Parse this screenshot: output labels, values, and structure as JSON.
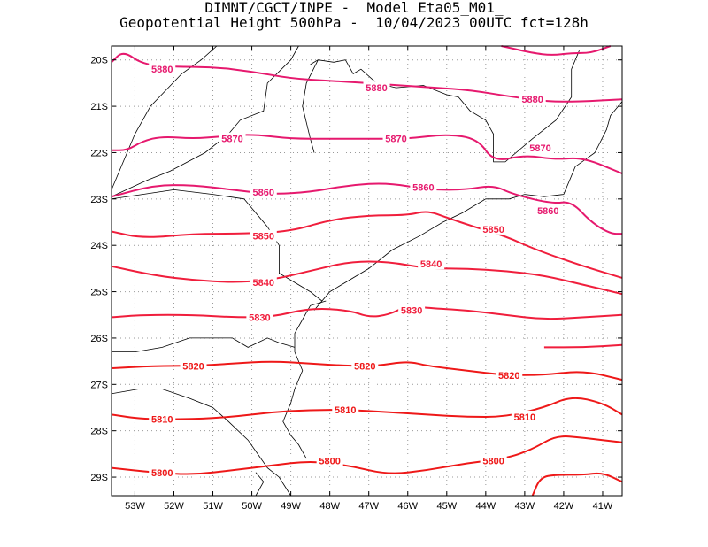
{
  "title": {
    "line1": "DIMNT/CGCT/INPE -  Model Eta05_M01_",
    "line2": "Geopotential Height 500hPa -  10/04/2023 00UTC fct=128h"
  },
  "axes": {
    "x_ticks": [
      "53W",
      "52W",
      "51W",
      "50W",
      "49W",
      "48W",
      "47W",
      "46W",
      "45W",
      "44W",
      "43W",
      "42W",
      "41W"
    ],
    "x_values": [
      -53,
      -52,
      -51,
      -50,
      -49,
      -48,
      -47,
      -46,
      -45,
      -44,
      -43,
      -42,
      -41
    ],
    "y_ticks": [
      "20S",
      "21S",
      "22S",
      "23S",
      "24S",
      "25S",
      "26S",
      "27S",
      "28S",
      "29S"
    ],
    "y_values": [
      -20,
      -21,
      -22,
      -23,
      -24,
      -25,
      -26,
      -27,
      -28,
      -29
    ],
    "lon_range": [
      -53.6,
      -40.5
    ],
    "lat_range": [
      -29.4,
      -19.7
    ],
    "grid": "dotted"
  },
  "colors": {
    "contour_high": "#e6196e",
    "contour_mid": "#f01e3c",
    "contour_low": "#ee1818",
    "coastline": "#000000",
    "grid": "#999999"
  },
  "contours": [
    {
      "level": 5880,
      "color": "#e6196e",
      "labels": [
        "5880",
        "5880",
        "5880"
      ],
      "points": [
        [
          -53.6,
          -20.05
        ],
        [
          -53.3,
          -19.8
        ],
        [
          -52.8,
          -20.1
        ],
        [
          -52.0,
          -20.15
        ],
        [
          -51.0,
          -20.15
        ],
        [
          -50.0,
          -20.25
        ],
        [
          -49.0,
          -20.4
        ],
        [
          -48.0,
          -20.45
        ],
        [
          -47.0,
          -20.5
        ],
        [
          -46.2,
          -20.55
        ],
        [
          -45.3,
          -20.6
        ],
        [
          -44.4,
          -20.65
        ],
        [
          -43.3,
          -20.8
        ],
        [
          -42.4,
          -20.9
        ],
        [
          -41.6,
          -20.9
        ],
        [
          -40.5,
          -20.85
        ]
      ],
      "label_pos": [
        [
          -52.3,
          -20.2
        ],
        [
          -46.8,
          -20.6
        ],
        [
          -42.8,
          -20.85
        ]
      ]
    },
    {
      "level": 5880,
      "color": "#e6196e",
      "labels": [],
      "points": [
        [
          -43.6,
          -19.7
        ],
        [
          -42.8,
          -19.85
        ],
        [
          -42.3,
          -19.9
        ],
        [
          -41.8,
          -19.85
        ],
        [
          -41.3,
          -19.85
        ],
        [
          -40.8,
          -19.7
        ]
      ],
      "label_pos": []
    },
    {
      "level": 5870,
      "color": "#e6196e",
      "labels": [
        "5870",
        "5870",
        "5870"
      ],
      "points": [
        [
          -53.6,
          -21.95
        ],
        [
          -53.2,
          -21.95
        ],
        [
          -52.8,
          -21.75
        ],
        [
          -52.3,
          -21.65
        ],
        [
          -51.5,
          -21.7
        ],
        [
          -50.8,
          -21.65
        ],
        [
          -50.0,
          -21.6
        ],
        [
          -49.0,
          -21.7
        ],
        [
          -48.0,
          -21.7
        ],
        [
          -47.0,
          -21.7
        ],
        [
          -46.0,
          -21.7
        ],
        [
          -45.0,
          -21.6
        ],
        [
          -44.2,
          -21.7
        ],
        [
          -43.8,
          -22.2
        ],
        [
          -43.0,
          -22.05
        ],
        [
          -42.2,
          -22.15
        ],
        [
          -41.5,
          -22.1
        ],
        [
          -40.5,
          -22.45
        ]
      ],
      "label_pos": [
        [
          -50.5,
          -21.7
        ],
        [
          -46.3,
          -21.7
        ],
        [
          -42.6,
          -21.9
        ]
      ]
    },
    {
      "level": 5860,
      "color": "#e6196e",
      "labels": [
        "5860",
        "5860",
        "5860"
      ],
      "points": [
        [
          -53.6,
          -22.95
        ],
        [
          -52.5,
          -22.7
        ],
        [
          -51.5,
          -22.7
        ],
        [
          -50.5,
          -22.8
        ],
        [
          -49.5,
          -22.9
        ],
        [
          -48.5,
          -22.85
        ],
        [
          -47.5,
          -22.7
        ],
        [
          -46.5,
          -22.65
        ],
        [
          -45.5,
          -22.8
        ],
        [
          -44.5,
          -22.8
        ],
        [
          -43.8,
          -22.7
        ],
        [
          -43.3,
          -22.9
        ],
        [
          -42.3,
          -23.1
        ],
        [
          -41.8,
          -23.05
        ],
        [
          -41.3,
          -23.5
        ],
        [
          -40.8,
          -23.75
        ],
        [
          -40.5,
          -23.75
        ]
      ],
      "label_pos": [
        [
          -49.7,
          -22.85
        ],
        [
          -45.6,
          -22.75
        ],
        [
          -42.4,
          -23.25
        ]
      ]
    },
    {
      "level": 5850,
      "color": "#f01e3c",
      "labels": [
        "5850",
        "5850"
      ],
      "points": [
        [
          -53.6,
          -23.7
        ],
        [
          -52.8,
          -23.85
        ],
        [
          -51.5,
          -23.75
        ],
        [
          -50.3,
          -23.75
        ],
        [
          -49.0,
          -23.7
        ],
        [
          -48.0,
          -23.45
        ],
        [
          -47.0,
          -23.35
        ],
        [
          -46.0,
          -23.35
        ],
        [
          -45.5,
          -23.25
        ],
        [
          -45.0,
          -23.4
        ],
        [
          -44.3,
          -23.6
        ],
        [
          -43.5,
          -23.8
        ],
        [
          -42.7,
          -24.1
        ],
        [
          -41.5,
          -24.45
        ],
        [
          -40.5,
          -24.7
        ]
      ],
      "label_pos": [
        [
          -49.7,
          -23.8
        ],
        [
          -43.8,
          -23.65
        ]
      ]
    },
    {
      "level": 5840,
      "color": "#f01e3c",
      "labels": [
        "5840",
        "5840"
      ],
      "points": [
        [
          -53.6,
          -24.45
        ],
        [
          -52.5,
          -24.65
        ],
        [
          -51.5,
          -24.75
        ],
        [
          -50.5,
          -24.8
        ],
        [
          -49.5,
          -24.75
        ],
        [
          -48.5,
          -24.55
        ],
        [
          -47.5,
          -24.35
        ],
        [
          -46.5,
          -24.35
        ],
        [
          -45.5,
          -24.5
        ],
        [
          -44.5,
          -24.5
        ],
        [
          -43.5,
          -24.55
        ],
        [
          -42.5,
          -24.65
        ],
        [
          -41.5,
          -24.85
        ],
        [
          -40.5,
          -25.05
        ]
      ],
      "label_pos": [
        [
          -49.7,
          -24.8
        ],
        [
          -45.4,
          -24.4
        ]
      ]
    },
    {
      "level": 5830,
      "color": "#f01e3c",
      "labels": [
        "5830",
        "5830"
      ],
      "points": [
        [
          -53.6,
          -25.55
        ],
        [
          -52.8,
          -25.5
        ],
        [
          -51.5,
          -25.5
        ],
        [
          -50.5,
          -25.55
        ],
        [
          -49.5,
          -25.55
        ],
        [
          -48.5,
          -25.35
        ],
        [
          -47.5,
          -25.4
        ],
        [
          -47.0,
          -25.55
        ],
        [
          -46.5,
          -25.5
        ],
        [
          -46.0,
          -25.3
        ],
        [
          -45.5,
          -25.35
        ],
        [
          -44.5,
          -25.4
        ],
        [
          -43.5,
          -25.5
        ],
        [
          -42.5,
          -25.6
        ],
        [
          -41.5,
          -25.55
        ],
        [
          -40.5,
          -25.5
        ]
      ],
      "label_pos": [
        [
          -49.8,
          -25.55
        ],
        [
          -45.9,
          -25.4
        ]
      ]
    },
    {
      "level": 5830,
      "color": "#f01e3c",
      "labels": [],
      "points": [
        [
          -40.5,
          -26.15
        ],
        [
          -41.5,
          -26.2
        ],
        [
          -42.5,
          -26.2
        ]
      ],
      "label_pos": []
    },
    {
      "level": 5820,
      "color": "#ee1818",
      "labels": [
        "5820",
        "5820",
        "5820"
      ],
      "points": [
        [
          -53.6,
          -26.65
        ],
        [
          -52.5,
          -26.6
        ],
        [
          -51.5,
          -26.6
        ],
        [
          -50.5,
          -26.55
        ],
        [
          -49.5,
          -26.5
        ],
        [
          -48.5,
          -26.55
        ],
        [
          -47.5,
          -26.6
        ],
        [
          -46.8,
          -26.6
        ],
        [
          -46.0,
          -26.5
        ],
        [
          -45.5,
          -26.6
        ],
        [
          -44.5,
          -26.7
        ],
        [
          -43.5,
          -26.8
        ],
        [
          -42.5,
          -26.8
        ],
        [
          -41.5,
          -26.7
        ],
        [
          -40.5,
          -26.9
        ]
      ],
      "label_pos": [
        [
          -51.5,
          -26.6
        ],
        [
          -47.1,
          -26.6
        ],
        [
          -43.4,
          -26.8
        ]
      ]
    },
    {
      "level": 5810,
      "color": "#ee1818",
      "labels": [
        "5810",
        "5810",
        "5810"
      ],
      "points": [
        [
          -53.6,
          -27.65
        ],
        [
          -52.8,
          -27.75
        ],
        [
          -51.5,
          -27.75
        ],
        [
          -50.5,
          -27.7
        ],
        [
          -49.5,
          -27.6
        ],
        [
          -48.5,
          -27.55
        ],
        [
          -47.5,
          -27.55
        ],
        [
          -46.5,
          -27.6
        ],
        [
          -45.5,
          -27.65
        ],
        [
          -44.5,
          -27.7
        ],
        [
          -43.5,
          -27.7
        ],
        [
          -42.5,
          -27.5
        ],
        [
          -41.8,
          -27.25
        ],
        [
          -41.0,
          -27.4
        ],
        [
          -40.5,
          -27.65
        ]
      ],
      "label_pos": [
        [
          -52.3,
          -27.75
        ],
        [
          -47.6,
          -27.55
        ],
        [
          -43.0,
          -27.7
        ]
      ]
    },
    {
      "level": 5800,
      "color": "#ee1818",
      "labels": [
        "5800",
        "5800",
        "5800"
      ],
      "points": [
        [
          -53.6,
          -28.8
        ],
        [
          -52.5,
          -28.9
        ],
        [
          -51.5,
          -28.95
        ],
        [
          -50.5,
          -28.85
        ],
        [
          -49.5,
          -28.75
        ],
        [
          -48.5,
          -28.65
        ],
        [
          -47.5,
          -28.75
        ],
        [
          -46.5,
          -28.95
        ],
        [
          -45.5,
          -28.85
        ],
        [
          -44.5,
          -28.7
        ],
        [
          -43.5,
          -28.6
        ],
        [
          -42.8,
          -28.4
        ],
        [
          -42.2,
          -28.1
        ],
        [
          -41.5,
          -28.15
        ],
        [
          -40.5,
          -28.25
        ]
      ],
      "label_pos": [
        [
          -52.3,
          -28.9
        ],
        [
          -48.0,
          -28.65
        ],
        [
          -43.8,
          -28.65
        ]
      ]
    },
    {
      "level": 5800,
      "color": "#ee1818",
      "labels": [],
      "points": [
        [
          -42.8,
          -29.4
        ],
        [
          -42.6,
          -29.0
        ],
        [
          -42.2,
          -28.95
        ],
        [
          -41.5,
          -28.95
        ],
        [
          -41.0,
          -28.9
        ],
        [
          -40.5,
          -29.1
        ]
      ],
      "label_pos": []
    }
  ],
  "coastline": [
    [
      [
        -48.5,
        -20.1
      ],
      [
        -48.3,
        -20.0
      ],
      [
        -47.9,
        -20.05
      ],
      [
        -47.6,
        -20.0
      ],
      [
        -47.4,
        -20.3
      ],
      [
        -47.2,
        -20.2
      ],
      [
        -46.8,
        -20.5
      ],
      [
        -46.3,
        -20.6
      ],
      [
        -45.6,
        -20.55
      ],
      [
        -45.0,
        -20.75
      ],
      [
        -44.7,
        -20.8
      ],
      [
        -44.4,
        -21.1
      ],
      [
        -44.0,
        -21.3
      ],
      [
        -43.8,
        -21.6
      ],
      [
        -43.8,
        -22.2
      ],
      [
        -43.5,
        -22.2
      ],
      [
        -42.8,
        -21.7
      ],
      [
        -42.2,
        -21.3
      ],
      [
        -41.8,
        -20.8
      ],
      [
        -41.8,
        -20.2
      ],
      [
        -41.6,
        -19.8
      ]
    ],
    [
      [
        -48.3,
        -20.0
      ],
      [
        -48.6,
        -20.5
      ],
      [
        -48.7,
        -21.0
      ],
      [
        -48.5,
        -21.7
      ],
      [
        -48.4,
        -22.0
      ]
    ],
    [
      [
        -53.6,
        -22.95
      ],
      [
        -52.7,
        -22.6
      ],
      [
        -52.1,
        -22.4
      ],
      [
        -51.2,
        -22.0
      ],
      [
        -50.6,
        -21.6
      ],
      [
        -50.3,
        -21.3
      ],
      [
        -49.7,
        -21.1
      ],
      [
        -49.6,
        -20.5
      ],
      [
        -49.0,
        -20.0
      ],
      [
        -48.8,
        -19.7
      ]
    ],
    [
      [
        -53.6,
        -23.0
      ],
      [
        -52.8,
        -22.9
      ],
      [
        -52.0,
        -22.8
      ],
      [
        -51.0,
        -22.9
      ],
      [
        -50.2,
        -23.0
      ],
      [
        -49.6,
        -23.6
      ],
      [
        -49.3,
        -24.0
      ],
      [
        -49.3,
        -24.6
      ],
      [
        -48.9,
        -24.8
      ],
      [
        -48.5,
        -25.0
      ],
      [
        -48.2,
        -25.2
      ]
    ],
    [
      [
        -48.1,
        -25.2
      ],
      [
        -48.5,
        -25.3
      ],
      [
        -48.7,
        -25.6
      ],
      [
        -48.9,
        -25.9
      ],
      [
        -48.9,
        -26.3
      ],
      [
        -48.7,
        -26.7
      ],
      [
        -48.9,
        -27.1
      ],
      [
        -49.0,
        -27.4
      ],
      [
        -49.2,
        -27.8
      ],
      [
        -49.0,
        -28.1
      ],
      [
        -48.8,
        -28.3
      ],
      [
        -48.6,
        -28.6
      ]
    ],
    [
      [
        -48.4,
        -25.4
      ],
      [
        -48.0,
        -25.0
      ],
      [
        -47.6,
        -24.8
      ],
      [
        -47.0,
        -24.5
      ],
      [
        -46.4,
        -24.1
      ],
      [
        -45.7,
        -23.8
      ],
      [
        -45.1,
        -23.5
      ],
      [
        -44.6,
        -23.3
      ],
      [
        -44.0,
        -23.0
      ],
      [
        -43.4,
        -23.0
      ],
      [
        -43.0,
        -22.9
      ],
      [
        -42.5,
        -22.95
      ],
      [
        -42.0,
        -22.9
      ],
      [
        -41.7,
        -22.3
      ],
      [
        -41.2,
        -22.0
      ],
      [
        -40.9,
        -21.5
      ],
      [
        -40.8,
        -21.2
      ],
      [
        -40.5,
        -20.9
      ]
    ],
    [
      [
        -53.6,
        -26.3
      ],
      [
        -53.0,
        -26.3
      ],
      [
        -52.3,
        -26.2
      ],
      [
        -51.6,
        -26.0
      ],
      [
        -51.0,
        -26.0
      ],
      [
        -50.5,
        -26.0
      ],
      [
        -50.1,
        -26.2
      ],
      [
        -49.6,
        -26.0
      ],
      [
        -49.3,
        -26.1
      ],
      [
        -48.9,
        -26.2
      ]
    ],
    [
      [
        -53.6,
        -27.2
      ],
      [
        -52.9,
        -27.1
      ],
      [
        -52.3,
        -27.1
      ],
      [
        -51.6,
        -27.3
      ],
      [
        -51.0,
        -27.5
      ],
      [
        -50.6,
        -27.8
      ],
      [
        -50.1,
        -28.2
      ],
      [
        -49.6,
        -28.8
      ],
      [
        -49.3,
        -29.0
      ],
      [
        -49.0,
        -29.4
      ]
    ],
    [
      [
        -49.9,
        -29.4
      ],
      [
        -49.7,
        -29.1
      ],
      [
        -49.9,
        -28.9
      ]
    ],
    [
      [
        -53.6,
        -22.8
      ],
      [
        -53.0,
        -21.6
      ],
      [
        -52.6,
        -21.0
      ],
      [
        -51.8,
        -20.3
      ],
      [
        -51.3,
        -20.0
      ],
      [
        -50.9,
        -19.7
      ]
    ]
  ]
}
